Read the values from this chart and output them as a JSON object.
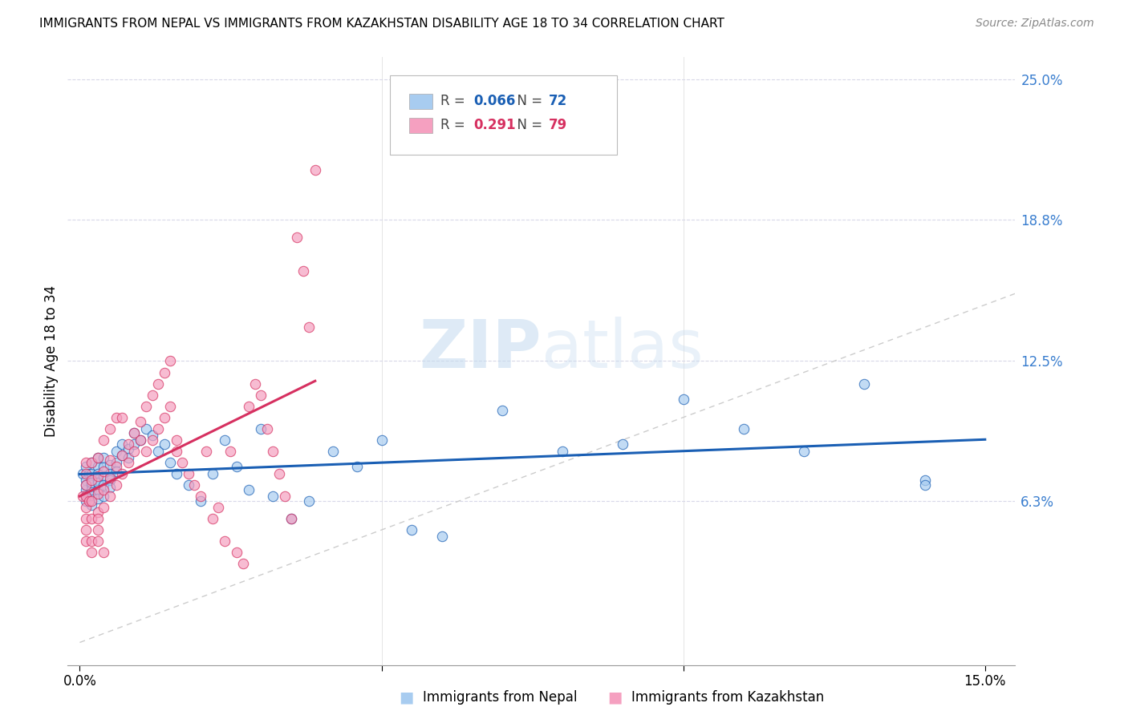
{
  "title": "IMMIGRANTS FROM NEPAL VS IMMIGRANTS FROM KAZAKHSTAN DISABILITY AGE 18 TO 34 CORRELATION CHART",
  "source": "Source: ZipAtlas.com",
  "ylabel_label": "Disability Age 18 to 34",
  "legend_nepal": "Immigrants from Nepal",
  "legend_kazakhstan": "Immigrants from Kazakhstan",
  "R_nepal": "0.066",
  "N_nepal": "72",
  "R_kazakhstan": "0.291",
  "N_kazakhstan": "79",
  "color_nepal": "#a8ccf0",
  "color_kazakhstan": "#f5a0c0",
  "color_nepal_line": "#1a5fb4",
  "color_kazakhstan_line": "#d63060",
  "color_diagonal": "#cccccc",
  "watermark_color": "#cce0f5",
  "xlim": [
    0.0,
    0.15
  ],
  "ylim": [
    0.0,
    0.25
  ],
  "ytick_vals": [
    0.063,
    0.125,
    0.188,
    0.25
  ],
  "ytick_labels": [
    "6.3%",
    "12.5%",
    "18.8%",
    "25.0%"
  ],
  "nepal_x": [
    0.0005,
    0.001,
    0.001,
    0.001,
    0.001,
    0.001,
    0.001,
    0.0015,
    0.002,
    0.002,
    0.002,
    0.002,
    0.002,
    0.002,
    0.002,
    0.002,
    0.003,
    0.003,
    0.003,
    0.003,
    0.003,
    0.003,
    0.003,
    0.004,
    0.004,
    0.004,
    0.004,
    0.004,
    0.005,
    0.005,
    0.005,
    0.005,
    0.006,
    0.006,
    0.006,
    0.007,
    0.007,
    0.008,
    0.008,
    0.009,
    0.009,
    0.01,
    0.011,
    0.012,
    0.013,
    0.014,
    0.015,
    0.016,
    0.018,
    0.02,
    0.022,
    0.024,
    0.026,
    0.028,
    0.03,
    0.032,
    0.035,
    0.038,
    0.042,
    0.046,
    0.05,
    0.055,
    0.06,
    0.07,
    0.08,
    0.09,
    0.1,
    0.11,
    0.12,
    0.13,
    0.14,
    0.14
  ],
  "nepal_y": [
    0.075,
    0.072,
    0.068,
    0.065,
    0.063,
    0.07,
    0.078,
    0.075,
    0.073,
    0.07,
    0.065,
    0.061,
    0.075,
    0.08,
    0.068,
    0.071,
    0.078,
    0.072,
    0.068,
    0.064,
    0.082,
    0.075,
    0.071,
    0.078,
    0.074,
    0.07,
    0.082,
    0.065,
    0.079,
    0.075,
    0.072,
    0.069,
    0.08,
    0.076,
    0.085,
    0.083,
    0.088,
    0.086,
    0.082,
    0.088,
    0.093,
    0.09,
    0.095,
    0.092,
    0.085,
    0.088,
    0.08,
    0.075,
    0.07,
    0.063,
    0.075,
    0.09,
    0.078,
    0.068,
    0.095,
    0.065,
    0.055,
    0.063,
    0.085,
    0.078,
    0.09,
    0.05,
    0.047,
    0.103,
    0.085,
    0.088,
    0.108,
    0.095,
    0.085,
    0.115,
    0.072,
    0.07
  ],
  "kazakhstan_x": [
    0.0005,
    0.001,
    0.001,
    0.001,
    0.001,
    0.001,
    0.001,
    0.001,
    0.001,
    0.0015,
    0.002,
    0.002,
    0.002,
    0.002,
    0.002,
    0.002,
    0.003,
    0.003,
    0.003,
    0.003,
    0.003,
    0.003,
    0.003,
    0.004,
    0.004,
    0.004,
    0.004,
    0.004,
    0.005,
    0.005,
    0.005,
    0.005,
    0.006,
    0.006,
    0.006,
    0.007,
    0.007,
    0.007,
    0.008,
    0.008,
    0.009,
    0.009,
    0.01,
    0.01,
    0.011,
    0.011,
    0.012,
    0.012,
    0.013,
    0.013,
    0.014,
    0.014,
    0.015,
    0.015,
    0.016,
    0.016,
    0.017,
    0.018,
    0.019,
    0.02,
    0.021,
    0.022,
    0.023,
    0.024,
    0.025,
    0.026,
    0.027,
    0.028,
    0.029,
    0.03,
    0.031,
    0.032,
    0.033,
    0.034,
    0.035,
    0.036,
    0.037,
    0.038,
    0.039
  ],
  "kazakhstan_y": [
    0.065,
    0.06,
    0.065,
    0.07,
    0.055,
    0.075,
    0.08,
    0.05,
    0.045,
    0.063,
    0.055,
    0.063,
    0.072,
    0.045,
    0.08,
    0.04,
    0.058,
    0.066,
    0.074,
    0.082,
    0.055,
    0.05,
    0.045,
    0.06,
    0.068,
    0.076,
    0.09,
    0.04,
    0.065,
    0.073,
    0.081,
    0.095,
    0.07,
    0.078,
    0.1,
    0.075,
    0.083,
    0.1,
    0.08,
    0.088,
    0.085,
    0.093,
    0.09,
    0.098,
    0.085,
    0.105,
    0.09,
    0.11,
    0.095,
    0.115,
    0.1,
    0.12,
    0.105,
    0.125,
    0.085,
    0.09,
    0.08,
    0.075,
    0.07,
    0.065,
    0.085,
    0.055,
    0.06,
    0.045,
    0.085,
    0.04,
    0.035,
    0.105,
    0.115,
    0.11,
    0.095,
    0.085,
    0.075,
    0.065,
    0.055,
    0.18,
    0.165,
    0.14,
    0.21
  ]
}
